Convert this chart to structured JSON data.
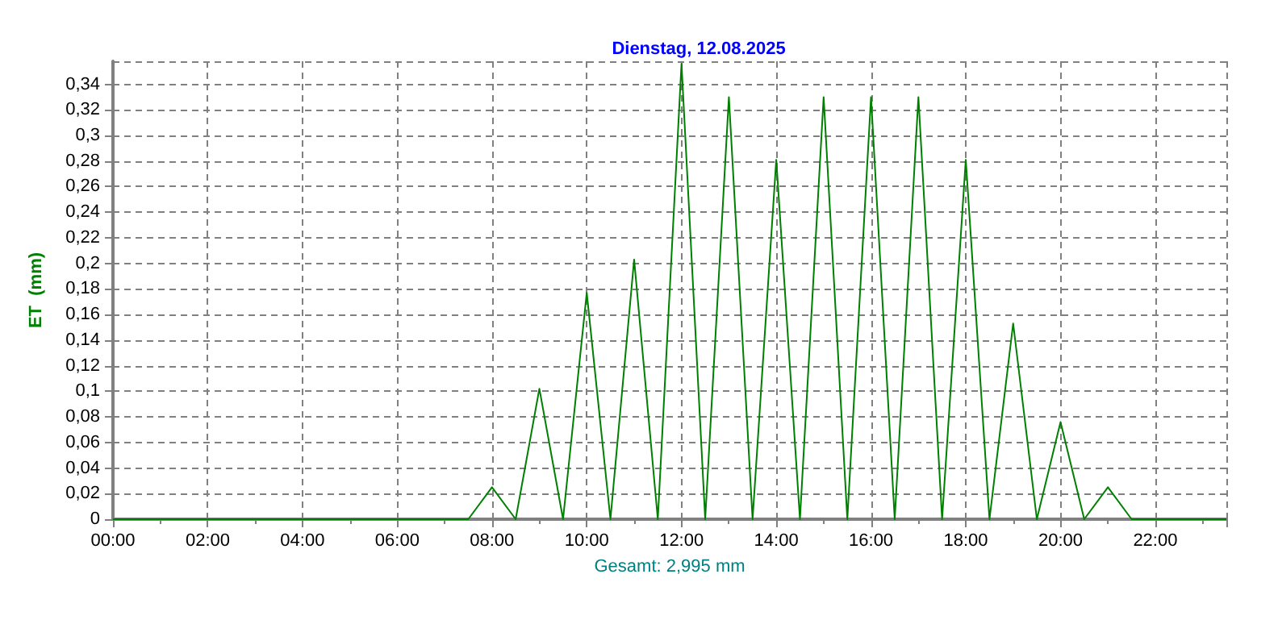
{
  "chart_data": {
    "type": "line",
    "title": "Dienstag, 12.08.2025",
    "xlabel": "Gesamt: 2,995 mm",
    "ylabel": "ET  (mm)",
    "x": [
      0,
      7.5,
      8,
      8.5,
      9,
      9.5,
      10,
      10.5,
      11,
      11.5,
      12,
      12.5,
      13,
      13.5,
      14,
      14.5,
      15,
      15.5,
      16,
      16.5,
      17,
      17.5,
      18,
      18.5,
      19,
      19.5,
      20,
      20.5,
      21,
      21.5,
      23.5
    ],
    "series": [
      {
        "color": "#008000",
        "values": [
          0,
          0,
          0.025,
          0,
          0.102,
          0,
          0.177,
          0,
          0.203,
          0,
          0.356,
          0,
          0.33,
          0,
          0.281,
          0,
          0.33,
          0,
          0.33,
          0,
          0.33,
          0,
          0.281,
          0,
          0.153,
          0,
          0.076,
          0,
          0.025,
          0,
          0
        ]
      }
    ],
    "xlim": [
      0,
      23.5
    ],
    "ylim": [
      0,
      0.358
    ],
    "xticks": [
      {
        "value": 0,
        "label": "00:00"
      },
      {
        "value": 2,
        "label": "02:00"
      },
      {
        "value": 4,
        "label": "04:00"
      },
      {
        "value": 6,
        "label": "06:00"
      },
      {
        "value": 8,
        "label": "08:00"
      },
      {
        "value": 10,
        "label": "10:00"
      },
      {
        "value": 12,
        "label": "12:00"
      },
      {
        "value": 14,
        "label": "14:00"
      },
      {
        "value": 16,
        "label": "16:00"
      },
      {
        "value": 18,
        "label": "18:00"
      },
      {
        "value": 20,
        "label": "20:00"
      },
      {
        "value": 22,
        "label": "22:00"
      }
    ],
    "yticks": [
      0,
      {
        "value": 0.02,
        "label": "0,02"
      },
      {
        "value": 0.04,
        "label": "0,04"
      },
      {
        "value": 0.06,
        "label": "0,06"
      },
      {
        "value": 0.08,
        "label": "0,08"
      },
      {
        "value": 0.1,
        "label": "0,1"
      },
      {
        "value": 0.12,
        "label": "0,12"
      },
      {
        "value": 0.14,
        "label": "0,14"
      },
      {
        "value": 0.16,
        "label": "0,16"
      },
      {
        "value": 0.18,
        "label": "0,18"
      },
      {
        "value": 0.2,
        "label": "0,2"
      },
      {
        "value": 0.22,
        "label": "0,22"
      },
      {
        "value": 0.24,
        "label": "0,24"
      },
      {
        "value": 0.26,
        "label": "0,26"
      },
      {
        "value": 0.28,
        "label": "0,28"
      },
      {
        "value": 0.3,
        "label": "0,3"
      },
      {
        "value": 0.32,
        "label": "0,32"
      },
      {
        "value": 0.34,
        "label": "0,34"
      }
    ],
    "grid": true,
    "marker": "none",
    "line_style": "solid"
  }
}
